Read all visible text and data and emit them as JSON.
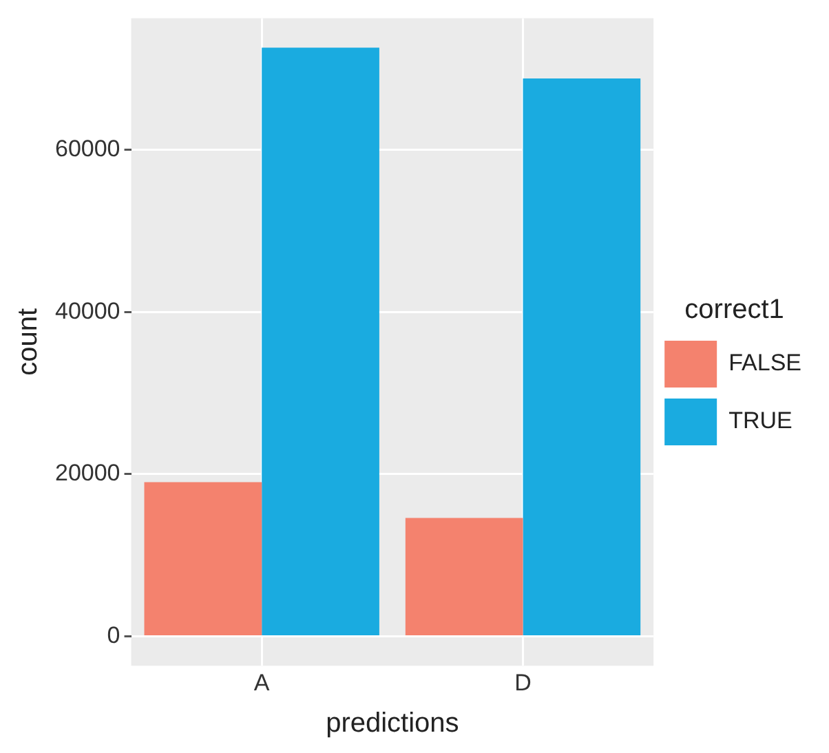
{
  "chart_data": {
    "type": "bar",
    "xlabel": "predictions",
    "ylabel": "count",
    "legend_title": "correct1",
    "categories": [
      "A",
      "D"
    ],
    "series": [
      {
        "name": "FALSE",
        "color": "#f4826e",
        "values": [
          19000,
          14600
        ]
      },
      {
        "name": "TRUE",
        "color": "#1aabe0",
        "values": [
          72600,
          68800
        ]
      }
    ],
    "ylim": [
      -3630,
      76230
    ],
    "yticks": [
      0,
      20000,
      40000,
      60000
    ],
    "grid": true,
    "legend": "right"
  }
}
